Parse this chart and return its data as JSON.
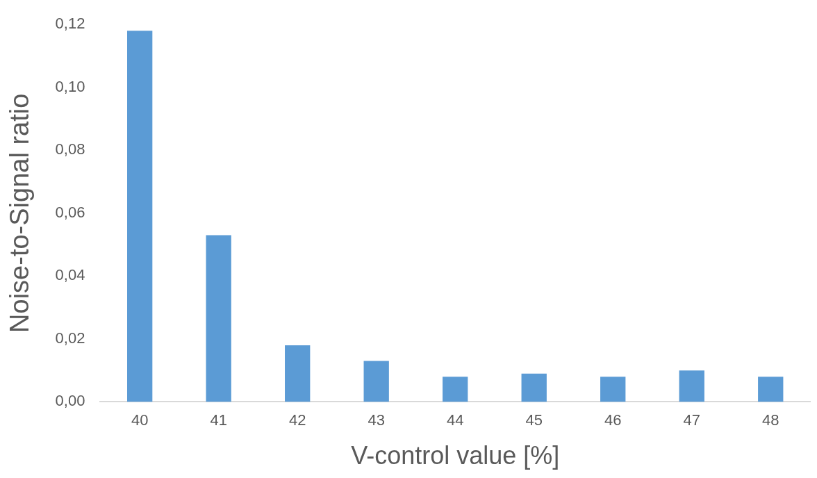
{
  "chart_data": {
    "type": "bar",
    "xlabel": "V-control value [%]",
    "ylabel": "Noise-to-Signal ratio",
    "categories": [
      "40",
      "41",
      "42",
      "43",
      "44",
      "45",
      "46",
      "47",
      "48"
    ],
    "values": [
      0.118,
      0.053,
      0.018,
      0.013,
      0.008,
      0.009,
      0.008,
      0.01,
      0.008
    ],
    "color": "#5b9bd5",
    "ylim": [
      0,
      0.12
    ],
    "yticks": [
      {
        "value": 0,
        "label": "0,00"
      },
      {
        "value": 0.02,
        "label": "0,02"
      },
      {
        "value": 0.04,
        "label": "0,04"
      },
      {
        "value": 0.06,
        "label": "0,06"
      },
      {
        "value": 0.08,
        "label": "0,08"
      },
      {
        "value": 0.1,
        "label": "0,10"
      },
      {
        "value": 0.12,
        "label": "0,12"
      }
    ],
    "grid": false,
    "legend": false
  }
}
